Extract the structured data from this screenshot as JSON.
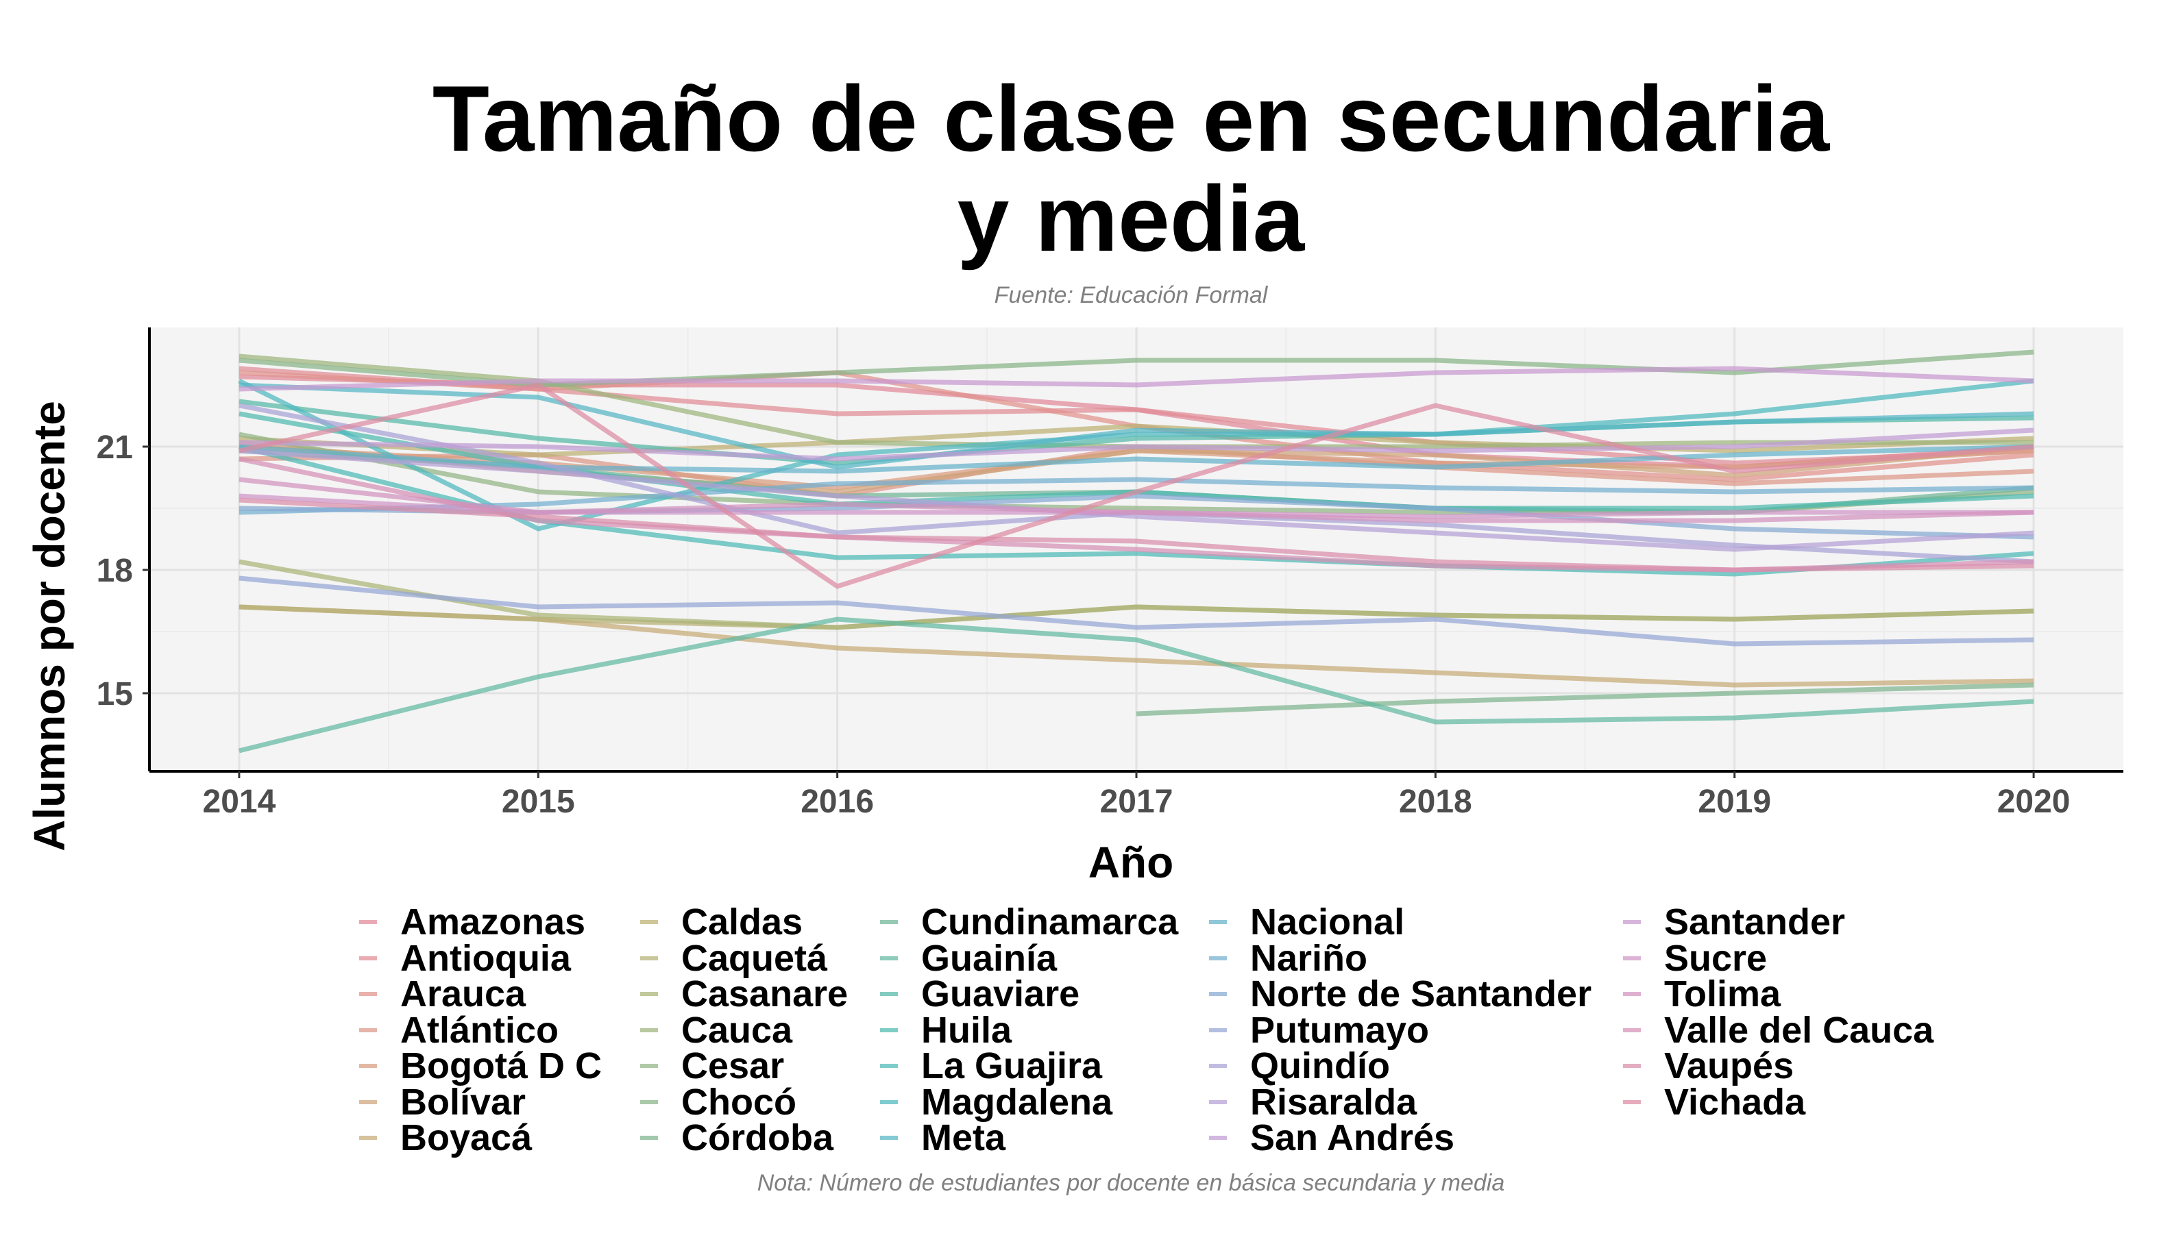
{
  "title_lines": [
    "Tamaño de clase en secundaria",
    "y media"
  ],
  "source": "Fuente: Educación Formal",
  "note": "Nota: Número de estudiantes por docente en básica secundaria y media",
  "chart_data": {
    "type": "line",
    "title": "Tamaño de clase en secundaria y media",
    "subtitle": "Fuente: Educación Formal",
    "xlabel": "Año",
    "ylabel": "Alumnos por docente",
    "x": [
      2014,
      2015,
      2016,
      2017,
      2018,
      2019,
      2020
    ],
    "xlim": [
      2013.7,
      2020.3
    ],
    "ylim": [
      13.1,
      23.9
    ],
    "yticks": [
      15,
      18,
      21
    ],
    "grid": true,
    "legend_position": "bottom",
    "series": [
      {
        "name": "Amazonas",
        "color": "#e0899a",
        "values": [
          22.7,
          22.5,
          22.5,
          21.9,
          20.8,
          20.5,
          21.0
        ]
      },
      {
        "name": "Antioquia",
        "color": "#e08c94",
        "values": [
          22.9,
          22.4,
          21.8,
          21.9,
          21.1,
          20.6,
          20.9
        ]
      },
      {
        "name": "Arauca",
        "color": "#e0928c",
        "values": [
          22.8,
          22.4,
          22.8,
          21.5,
          20.6,
          20.2,
          20.8
        ]
      },
      {
        "name": "Atlántico",
        "color": "#dc9787",
        "values": [
          20.7,
          20.8,
          19.8,
          21.0,
          20.5,
          20.1,
          20.4
        ]
      },
      {
        "name": "Bogotá D C",
        "color": "#d89d80",
        "values": [
          21.0,
          20.6,
          20.0,
          20.9,
          20.6,
          20.5,
          20.9
        ]
      },
      {
        "name": "Bolívar",
        "color": "#cea47a",
        "values": [
          21.1,
          20.4,
          19.9,
          20.9,
          20.8,
          20.3,
          21.0
        ]
      },
      {
        "name": "Boyacá",
        "color": "#c6aa76",
        "values": [
          17.1,
          16.8,
          16.1,
          15.8,
          15.5,
          15.2,
          15.3
        ]
      },
      {
        "name": "Caldas",
        "color": "#bdb073",
        "values": [
          21.2,
          20.8,
          21.1,
          21.5,
          21.1,
          20.9,
          21.2
        ]
      },
      {
        "name": "Caquetá",
        "color": "#b6b074",
        "values": [
          17.1,
          16.8,
          16.6,
          17.1,
          16.9,
          16.8,
          17.0
        ]
      },
      {
        "name": "Casanare",
        "color": "#aab476",
        "values": [
          18.2,
          16.9,
          16.6,
          17.1,
          16.9,
          16.8,
          17.0
        ]
      },
      {
        "name": "Cauca",
        "color": "#9eb47c",
        "values": [
          23.2,
          22.6,
          21.1,
          21.0,
          21.0,
          21.1,
          21.1
        ]
      },
      {
        "name": "Cesar",
        "color": "#92b483",
        "values": [
          21.3,
          19.9,
          19.6,
          19.5,
          19.4,
          19.4,
          19.9
        ]
      },
      {
        "name": "Chocó",
        "color": "#88b487",
        "values": [
          23.1,
          22.5,
          22.8,
          23.1,
          23.1,
          22.8,
          23.3
        ]
      },
      {
        "name": "Córdoba",
        "color": "#7eb48f",
        "values": [
          null,
          null,
          null,
          14.5,
          14.8,
          15.0,
          15.2
        ]
      },
      {
        "name": "Cundinamarca",
        "color": "#70b596",
        "values": [
          20.9,
          20.5,
          19.8,
          19.9,
          19.5,
          19.4,
          20.0
        ]
      },
      {
        "name": "Guainía",
        "color": "#62b8a1",
        "values": [
          13.6,
          15.4,
          16.8,
          16.3,
          14.3,
          14.4,
          14.8
        ]
      },
      {
        "name": "Guaviare",
        "color": "#55b9a8",
        "values": [
          22.1,
          21.2,
          20.6,
          21.2,
          21.3,
          21.6,
          21.7
        ]
      },
      {
        "name": "Huila",
        "color": "#4ebaae",
        "values": [
          21.8,
          20.5,
          19.6,
          19.9,
          19.5,
          19.5,
          19.8
        ]
      },
      {
        "name": "La Guajira",
        "color": "#4cbab6",
        "values": [
          21.0,
          19.2,
          18.3,
          18.4,
          18.1,
          17.9,
          18.4
        ]
      },
      {
        "name": "Magdalena",
        "color": "#4eb8be",
        "values": [
          22.6,
          19.0,
          20.8,
          21.3,
          21.3,
          21.8,
          22.6
        ]
      },
      {
        "name": "Meta",
        "color": "#55b6c5",
        "values": [
          22.5,
          22.2,
          20.5,
          21.4,
          21.3,
          21.6,
          21.8
        ]
      },
      {
        "name": "Nacional",
        "color": "#65b2ca",
        "values": [
          21.0,
          20.5,
          20.4,
          20.7,
          20.5,
          20.8,
          21.0
        ]
      },
      {
        "name": "Nariño",
        "color": "#73aed0",
        "values": [
          19.4,
          19.6,
          20.1,
          20.2,
          20.0,
          19.9,
          20.0
        ]
      },
      {
        "name": "Norte de Santander",
        "color": "#85a9d3",
        "values": [
          19.5,
          19.4,
          19.5,
          19.8,
          19.5,
          19.0,
          18.8
        ]
      },
      {
        "name": "Putumayo",
        "color": "#96a6d6",
        "values": [
          17.8,
          17.1,
          17.2,
          16.6,
          16.8,
          16.2,
          16.3
        ]
      },
      {
        "name": "Quindío",
        "color": "#a7a2d6",
        "values": [
          22.0,
          20.6,
          18.9,
          19.4,
          19.1,
          18.6,
          18.2
        ]
      },
      {
        "name": "Risaralda",
        "color": "#b49fd6",
        "values": [
          20.9,
          20.4,
          19.8,
          19.3,
          18.9,
          18.5,
          18.9
        ]
      },
      {
        "name": "San Andrés",
        "color": "#c19bd4",
        "values": [
          21.1,
          21.0,
          20.7,
          21.0,
          20.9,
          21.0,
          21.4
        ]
      },
      {
        "name": "Santander",
        "color": "#c899d0",
        "values": [
          22.4,
          22.6,
          22.6,
          22.5,
          22.8,
          22.9,
          22.6
        ]
      },
      {
        "name": "Sucre",
        "color": "#cf96c8",
        "values": [
          19.8,
          19.4,
          19.4,
          19.4,
          19.3,
          19.4,
          19.4
        ]
      },
      {
        "name": "Tolima",
        "color": "#d293bf",
        "values": [
          20.2,
          19.4,
          19.6,
          19.4,
          19.2,
          19.2,
          19.4
        ]
      },
      {
        "name": "Valle del Cauca",
        "color": "#d690b5",
        "values": [
          20.7,
          19.2,
          18.8,
          18.5,
          18.1,
          18.0,
          18.2
        ]
      },
      {
        "name": "Vaupés",
        "color": "#d98eaa",
        "values": [
          19.7,
          19.3,
          18.8,
          18.7,
          18.2,
          18.0,
          18.1
        ]
      },
      {
        "name": "Vichada",
        "color": "#dc8ba2",
        "values": [
          20.9,
          22.5,
          17.6,
          19.9,
          22.0,
          20.4,
          21.0
        ]
      }
    ]
  }
}
